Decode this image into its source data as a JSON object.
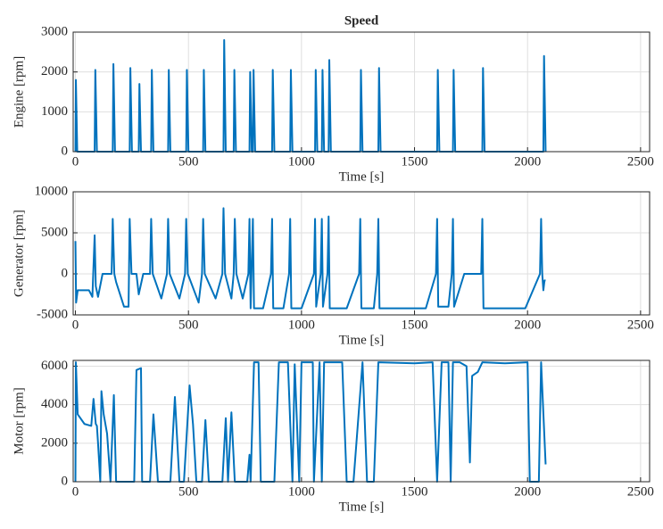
{
  "chart_data": [
    {
      "type": "line",
      "title": "Speed",
      "xlabel": "Time [s]",
      "ylabel": "Engine [rpm]",
      "color": "#0072bd",
      "grid": true,
      "xlim": [
        -10,
        2540
      ],
      "ylim": [
        0,
        3000
      ],
      "xticks": [
        0,
        500,
        1000,
        1500,
        2000,
        2500
      ],
      "yticks": [
        0,
        1000,
        2000,
        3000
      ],
      "x": [
        0,
        2,
        8,
        85,
        88,
        95,
        165,
        168,
        175,
        240,
        243,
        250,
        280,
        283,
        290,
        335,
        338,
        345,
        410,
        413,
        420,
        490,
        493,
        500,
        565,
        568,
        575,
        655,
        658,
        665,
        700,
        703,
        710,
        770,
        773,
        780,
        785,
        788,
        795,
        870,
        873,
        880,
        950,
        953,
        960,
        1060,
        1063,
        1070,
        1090,
        1093,
        1100,
        1120,
        1123,
        1130,
        1260,
        1263,
        1270,
        1340,
        1343,
        1350,
        1600,
        1603,
        1610,
        1670,
        1673,
        1680,
        1800,
        1803,
        1810,
        2070,
        2073,
        2080
      ],
      "values": [
        0,
        1800,
        0,
        0,
        2050,
        0,
        0,
        2200,
        0,
        0,
        2100,
        0,
        0,
        1700,
        0,
        0,
        2050,
        0,
        0,
        2050,
        0,
        0,
        2050,
        0,
        0,
        2050,
        0,
        0,
        2800,
        0,
        0,
        2050,
        0,
        0,
        2000,
        0,
        0,
        2050,
        0,
        0,
        2050,
        0,
        0,
        2050,
        0,
        0,
        2050,
        0,
        0,
        2050,
        0,
        0,
        2300,
        0,
        0,
        2050,
        0,
        0,
        2100,
        0,
        0,
        2050,
        0,
        0,
        2050,
        0,
        0,
        2100,
        0,
        0,
        2400,
        0
      ]
    },
    {
      "type": "line",
      "xlabel": "Time [s]",
      "ylabel": "Generator [rpm]",
      "color": "#0072bd",
      "grid": true,
      "xlim": [
        -10,
        2540
      ],
      "ylim": [
        -5000,
        10000
      ],
      "xticks": [
        0,
        500,
        1000,
        1500,
        2000,
        2500
      ],
      "yticks": [
        -5000,
        0,
        5000,
        10000
      ],
      "x": [
        0,
        3,
        10,
        60,
        75,
        85,
        90,
        100,
        120,
        160,
        165,
        172,
        180,
        215,
        235,
        240,
        248,
        270,
        280,
        300,
        330,
        335,
        342,
        380,
        405,
        410,
        417,
        460,
        485,
        490,
        497,
        545,
        560,
        565,
        572,
        620,
        650,
        655,
        662,
        690,
        700,
        705,
        712,
        740,
        765,
        770,
        775,
        785,
        790,
        830,
        865,
        870,
        875,
        920,
        945,
        950,
        955,
        1000,
        1055,
        1060,
        1065,
        1085,
        1090,
        1095,
        1115,
        1120,
        1125,
        1200,
        1255,
        1260,
        1265,
        1320,
        1335,
        1340,
        1345,
        1550,
        1595,
        1600,
        1605,
        1650,
        1665,
        1670,
        1675,
        1720,
        1795,
        1800,
        1805,
        1990,
        2055,
        2060,
        2065,
        2070,
        2075,
        2080
      ],
      "values": [
        4000,
        -3500,
        -2000,
        -2000,
        -2800,
        4700,
        -1500,
        -2800,
        0,
        0,
        6700,
        0,
        -1000,
        -4000,
        -4000,
        6700,
        0,
        0,
        -2500,
        0,
        0,
        6700,
        0,
        -3000,
        0,
        6700,
        0,
        -3000,
        0,
        6700,
        0,
        -3500,
        0,
        6700,
        0,
        -3000,
        0,
        8000,
        0,
        -3000,
        0,
        6700,
        0,
        -3000,
        0,
        6700,
        -4200,
        6700,
        -4200,
        -4200,
        0,
        6700,
        -4200,
        -4200,
        0,
        6700,
        -4200,
        -4200,
        0,
        6700,
        -4000,
        0,
        6700,
        -4000,
        0,
        7000,
        -4200,
        -4200,
        0,
        6700,
        -4200,
        -4200,
        0,
        6700,
        -4200,
        -4200,
        0,
        6700,
        -4000,
        -4000,
        0,
        6700,
        -4000,
        0,
        0,
        6700,
        -4200,
        -4200,
        0,
        6700,
        0,
        -2000,
        -800,
        -800
      ]
    },
    {
      "type": "line",
      "xlabel": "Time [s]",
      "ylabel": "Motor [rpm]",
      "color": "#0072bd",
      "grid": true,
      "xlim": [
        -10,
        2540
      ],
      "ylim": [
        0,
        6300
      ],
      "xticks": [
        0,
        500,
        1000,
        1500,
        2000,
        2500
      ],
      "yticks": [
        0,
        2000,
        4000,
        6000
      ],
      "x": [
        0,
        2,
        10,
        40,
        70,
        80,
        90,
        95,
        100,
        110,
        115,
        125,
        140,
        155,
        170,
        180,
        260,
        270,
        290,
        295,
        330,
        345,
        365,
        420,
        440,
        460,
        480,
        505,
        520,
        535,
        560,
        575,
        590,
        650,
        665,
        675,
        690,
        705,
        760,
        770,
        775,
        790,
        810,
        820,
        880,
        900,
        940,
        960,
        970,
        990,
        1000,
        1050,
        1055,
        1080,
        1090,
        1100,
        1180,
        1200,
        1230,
        1270,
        1290,
        1320,
        1340,
        1500,
        1580,
        1600,
        1620,
        1650,
        1660,
        1670,
        1700,
        1730,
        1745,
        1755,
        1780,
        1800,
        1900,
        2000,
        2010,
        2050,
        2060,
        2080
      ],
      "values": [
        0,
        6200,
        3500,
        3000,
        2900,
        4300,
        3000,
        2900,
        2000,
        0,
        4700,
        3500,
        2500,
        0,
        4500,
        0,
        0,
        5800,
        5900,
        0,
        0,
        3500,
        0,
        0,
        4400,
        0,
        0,
        5000,
        3000,
        0,
        0,
        3200,
        0,
        0,
        3300,
        0,
        3600,
        0,
        0,
        1400,
        0,
        6200,
        6200,
        0,
        0,
        6200,
        6200,
        0,
        6100,
        0,
        6200,
        6200,
        0,
        6200,
        0,
        6200,
        6200,
        0,
        0,
        6200,
        0,
        0,
        6200,
        6150,
        6200,
        0,
        6200,
        6200,
        0,
        6200,
        6200,
        6000,
        1000,
        5500,
        5700,
        6200,
        6150,
        6200,
        0,
        0,
        6200,
        900
      ]
    }
  ]
}
